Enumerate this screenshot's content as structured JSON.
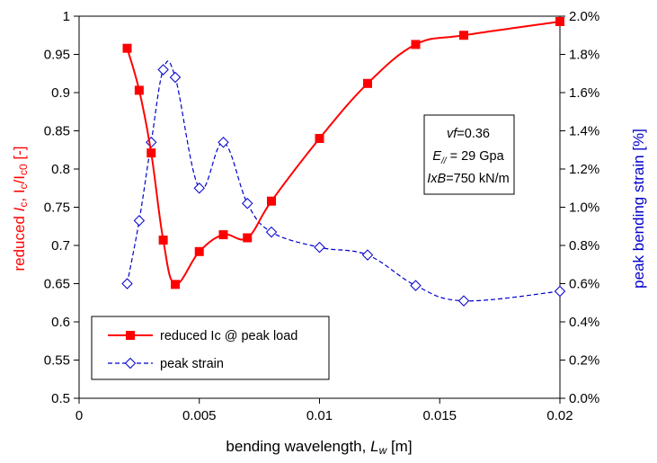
{
  "chart_data": {
    "type": "line",
    "xlabel": "bending wavelength, L_w [m]",
    "xlabel_parts": {
      "prefix": "bending wavelength, ",
      "var": "L",
      "sub": "w",
      "suffix": " [m]"
    },
    "ylabel_left": "reduced Ic, Ic/Ic0 [-]",
    "ylabel_left_parts": {
      "a": "reduced ",
      "b": "I",
      "c": "c",
      "d": ", I",
      "e": "c",
      "f": "/I",
      "g": "c0",
      "h": " [-]"
    },
    "ylabel_right": "peak bending strain [%]",
    "xlim": [
      0,
      0.02
    ],
    "ylim_left": [
      0.5,
      1.0
    ],
    "ylim_right": [
      0.0,
      2.0
    ],
    "x_ticks": [
      "0",
      "0.005",
      "0.01",
      "0.015",
      "0.02"
    ],
    "y_left_ticks": [
      "0.5",
      "0.55",
      "0.6",
      "0.65",
      "0.7",
      "0.75",
      "0.8",
      "0.85",
      "0.9",
      "0.95",
      "1"
    ],
    "y_right_ticks": [
      "0.0%",
      "0.2%",
      "0.4%",
      "0.6%",
      "0.8%",
      "1.0%",
      "1.2%",
      "1.4%",
      "1.6%",
      "1.8%",
      "2.0%"
    ],
    "grid": false,
    "legend_position": "bottom-left",
    "series": [
      {
        "name": "reduced Ic @ peak load",
        "axis": "left",
        "color": "#ff0000",
        "marker": "filled-square",
        "line": "solid",
        "x": [
          0.002,
          0.0025,
          0.003,
          0.0035,
          0.004,
          0.005,
          0.006,
          0.007,
          0.008,
          0.01,
          0.012,
          0.014,
          0.016,
          0.02
        ],
        "y": [
          0.958,
          0.903,
          0.821,
          0.707,
          0.649,
          0.692,
          0.714,
          0.71,
          0.758,
          0.84,
          0.912,
          0.963,
          0.975,
          0.993
        ]
      },
      {
        "name": "peak strain",
        "axis": "right",
        "color": "#0000cc",
        "marker": "open-diamond",
        "line": "dashed",
        "x": [
          0.002,
          0.0025,
          0.003,
          0.0035,
          0.004,
          0.005,
          0.006,
          0.007,
          0.008,
          0.01,
          0.012,
          0.014,
          0.016,
          0.02
        ],
        "y": [
          0.6,
          0.93,
          1.34,
          1.72,
          1.68,
          1.1,
          1.34,
          1.02,
          0.87,
          0.79,
          0.75,
          0.59,
          0.51,
          0.56
        ]
      }
    ],
    "annotation": {
      "vf_label": "vf",
      "vf_value": "=0.36",
      "e_label": "E",
      "e_sub": "//",
      "e_value": " = 29 Gpa",
      "ixb_label": "IxB",
      "ixb_value": "=750 kN/m"
    }
  }
}
